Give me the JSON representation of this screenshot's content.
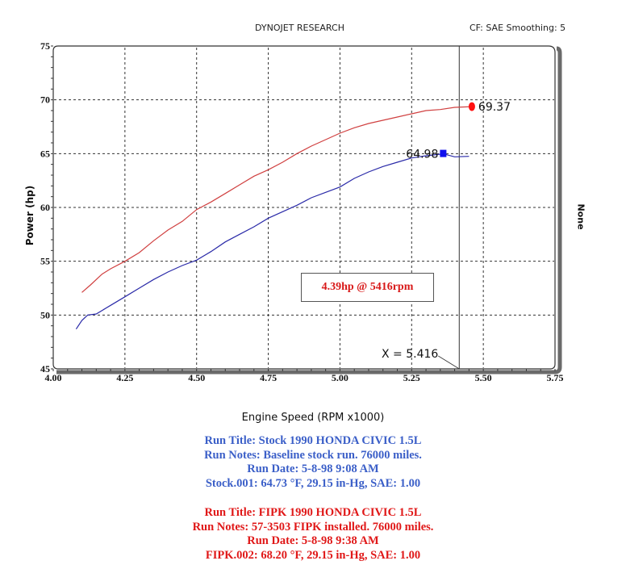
{
  "header": {
    "title": "DYNOJET RESEARCH",
    "settings": "CF: SAE  Smoothing: 5"
  },
  "axes": {
    "ylabel": "Power (hp)",
    "xlabel": "Engine Speed (RPM x1000)",
    "right_label": "None",
    "y_ticks": [
      "75",
      "70",
      "65",
      "60",
      "55",
      "50",
      "45"
    ],
    "x_ticks": [
      "4.00",
      "4.25",
      "4.50",
      "4.75",
      "5.00",
      "5.25",
      "5.50",
      "5.75"
    ]
  },
  "annotations": {
    "gain_box": "4.39hp @ 5416rpm",
    "cursor_label": "X = 5.416",
    "red_marker_value": "69.37",
    "blue_marker_value": "64.98"
  },
  "runs": {
    "stock": {
      "title": "Run Title: Stock 1990 HONDA CIVIC 1.5L",
      "notes": "Run Notes: Baseline stock run. 76000 miles.",
      "date": "Run Date: 5-8-98 9:08 AM",
      "conditions": "Stock.001: 64.73 °F, 29.15 in-Hg, SAE: 1.00",
      "color": "#2a2aa8"
    },
    "fipk": {
      "title": "Run Title: FIPK 1990 HONDA CIVIC 1.5L",
      "notes": "Run Notes: 57-3503 FIPK installed. 76000 miles.",
      "date": "Run Date: 5-8-98 9:38 AM",
      "conditions": "FIPK.002: 68.20 °F, 29.15 in-Hg, SAE: 1.00",
      "color": "#d04040"
    }
  },
  "chart_data": {
    "type": "line",
    "title": "DYNOJET RESEARCH",
    "subtitle": "CF: SAE  Smoothing: 5",
    "xlabel": "Engine Speed (RPM x1000)",
    "ylabel": "Power (hp)",
    "xlim": [
      4.0,
      5.75
    ],
    "ylim": [
      45,
      75
    ],
    "x_ticks": [
      4.0,
      4.25,
      4.5,
      4.75,
      5.0,
      5.25,
      5.5,
      5.75
    ],
    "y_ticks": [
      45,
      50,
      55,
      60,
      65,
      70,
      75
    ],
    "grid": true,
    "cursor_x": 5.416,
    "series": [
      {
        "name": "FIPK.002",
        "color": "#d04040",
        "x": [
          4.1,
          4.13,
          4.17,
          4.2,
          4.25,
          4.3,
          4.35,
          4.4,
          4.45,
          4.5,
          4.55,
          4.6,
          4.65,
          4.7,
          4.75,
          4.8,
          4.85,
          4.9,
          4.95,
          5.0,
          5.05,
          5.1,
          5.15,
          5.2,
          5.25,
          5.3,
          5.35,
          5.4,
          5.46
        ],
        "y": [
          52.1,
          52.8,
          53.8,
          54.3,
          55.0,
          55.8,
          56.9,
          57.9,
          58.7,
          59.8,
          60.5,
          61.3,
          62.1,
          62.9,
          63.5,
          64.2,
          65.0,
          65.7,
          66.3,
          66.9,
          67.4,
          67.8,
          68.1,
          68.4,
          68.7,
          69.0,
          69.1,
          69.3,
          69.37
        ]
      },
      {
        "name": "Stock.001",
        "color": "#2a2aa8",
        "x": [
          4.08,
          4.1,
          4.12,
          4.15,
          4.2,
          4.25,
          4.3,
          4.35,
          4.4,
          4.45,
          4.5,
          4.55,
          4.6,
          4.65,
          4.7,
          4.75,
          4.8,
          4.85,
          4.9,
          4.95,
          5.0,
          5.05,
          5.1,
          5.15,
          5.2,
          5.25,
          5.3,
          5.36,
          5.4,
          5.45
        ],
        "y": [
          48.7,
          49.5,
          50.0,
          50.1,
          50.9,
          51.7,
          52.5,
          53.3,
          54.0,
          54.6,
          55.1,
          55.9,
          56.8,
          57.5,
          58.2,
          59.0,
          59.6,
          60.2,
          60.9,
          61.4,
          61.9,
          62.7,
          63.3,
          63.8,
          64.2,
          64.6,
          64.8,
          64.98,
          64.7,
          64.75
        ]
      }
    ],
    "markers": [
      {
        "series": "FIPK.002",
        "x": 5.46,
        "y": 69.37,
        "label": "69.37"
      },
      {
        "series": "Stock.001",
        "x": 5.36,
        "y": 64.98,
        "label": "64.98"
      }
    ],
    "annotations": [
      "4.39hp @ 5416rpm",
      "X = 5.416"
    ],
    "right_axis_label": "None"
  }
}
